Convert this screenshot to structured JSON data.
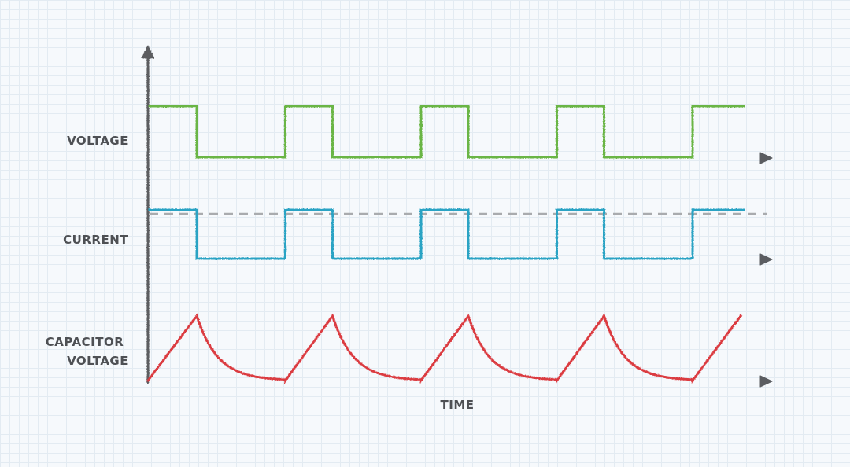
{
  "diagram": {
    "channels": [
      {
        "key": "voltage",
        "label_lines": [
          "VOLTAGE"
        ],
        "color": "#6ab545",
        "waveform": "square"
      },
      {
        "key": "current",
        "label_lines": [
          "CURRENT"
        ],
        "color": "#2ba3c4",
        "waveform": "square"
      },
      {
        "key": "capacitor",
        "label_lines": [
          "CAPACITOR",
          "VOLTAGE"
        ],
        "color": "#db3a40",
        "waveform": "sawtooth-decay"
      }
    ],
    "x_axis_label": "TIME",
    "axis_color": "#5b5d61",
    "reference_line_color": "#a9abae"
  }
}
